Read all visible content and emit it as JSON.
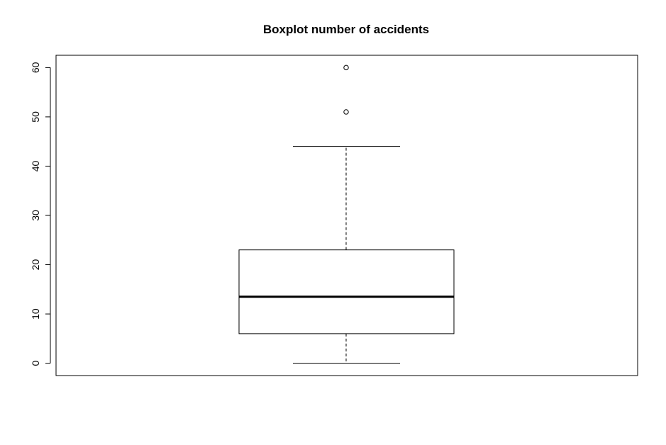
{
  "chart_data": {
    "type": "boxplot",
    "title": "Boxplot number of accidents",
    "xlabel": "",
    "ylabel": "",
    "ylim": [
      -2.5,
      62.5
    ],
    "yticks": [
      0,
      10,
      20,
      30,
      40,
      50,
      60
    ],
    "ytick_labels": [
      "0",
      "10",
      "20",
      "30",
      "40",
      "50",
      "60"
    ],
    "box": {
      "min": 0,
      "q1": 6,
      "median": 13.5,
      "q3": 23,
      "max": 44
    },
    "outliers": [
      51,
      60
    ],
    "grid": false,
    "colors": {
      "stroke": "#000000",
      "background": "#ffffff"
    }
  }
}
